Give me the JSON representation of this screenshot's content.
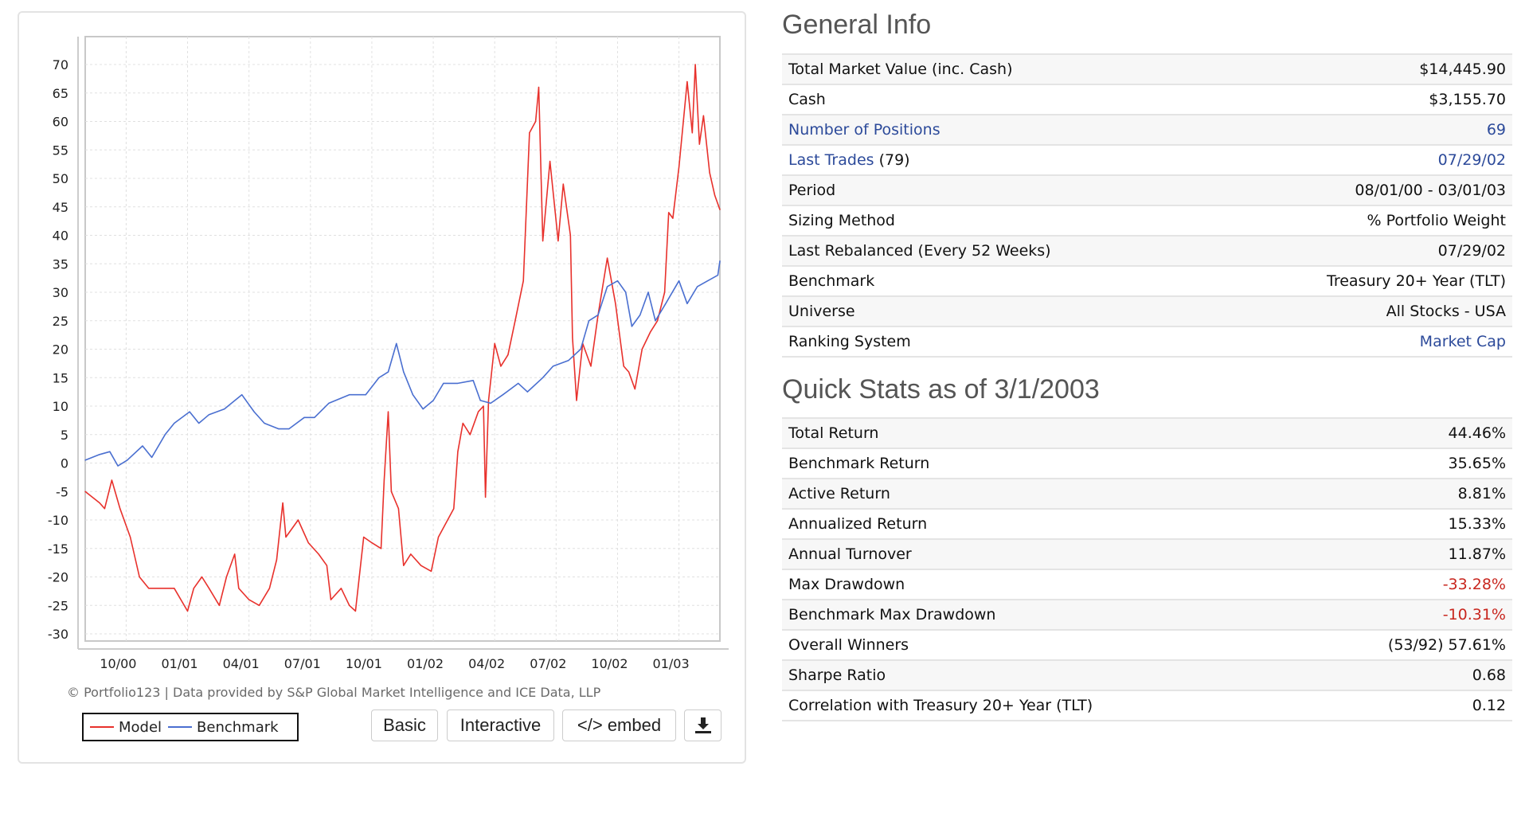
{
  "chart_data": {
    "type": "line",
    "title": "",
    "xlabel": "",
    "ylabel": "",
    "x_unit": "months since 08/01/00",
    "xlim": [
      0,
      31
    ],
    "ylim": [
      -32,
      75
    ],
    "grid": true,
    "yticks": [
      70,
      65,
      60,
      55,
      50,
      45,
      40,
      35,
      30,
      25,
      20,
      15,
      10,
      5,
      0,
      -5,
      -10,
      -15,
      -20,
      -25,
      -30
    ],
    "xticks": [
      {
        "label": "10/00",
        "x": 2
      },
      {
        "label": "01/01",
        "x": 5
      },
      {
        "label": "04/01",
        "x": 8
      },
      {
        "label": "07/01",
        "x": 11
      },
      {
        "label": "10/01",
        "x": 14
      },
      {
        "label": "01/02",
        "x": 17
      },
      {
        "label": "04/02",
        "x": 20
      },
      {
        "label": "07/02",
        "x": 23
      },
      {
        "label": "10/02",
        "x": 26
      },
      {
        "label": "01/03",
        "x": 29
      }
    ],
    "series": [
      {
        "name": "Model",
        "color": "#e8312c",
        "points": [
          [
            0,
            -5
          ],
          [
            0.7,
            -7
          ],
          [
            0.95,
            -8
          ],
          [
            1.3,
            -3
          ],
          [
            1.7,
            -8
          ],
          [
            2.2,
            -13
          ],
          [
            2.65,
            -20
          ],
          [
            3.1,
            -22
          ],
          [
            3.9,
            -22
          ],
          [
            4.35,
            -22
          ],
          [
            5.0,
            -26
          ],
          [
            5.3,
            -22
          ],
          [
            5.7,
            -20
          ],
          [
            6.05,
            -22
          ],
          [
            6.55,
            -25
          ],
          [
            6.9,
            -20
          ],
          [
            7.3,
            -16
          ],
          [
            7.5,
            -22
          ],
          [
            8.0,
            -24
          ],
          [
            8.5,
            -25
          ],
          [
            9.0,
            -22
          ],
          [
            9.35,
            -17
          ],
          [
            9.65,
            -7
          ],
          [
            9.8,
            -13
          ],
          [
            10.4,
            -10
          ],
          [
            10.9,
            -14
          ],
          [
            11.4,
            -16
          ],
          [
            11.8,
            -18
          ],
          [
            12.0,
            -24
          ],
          [
            12.5,
            -22
          ],
          [
            12.9,
            -25
          ],
          [
            13.2,
            -26
          ],
          [
            13.6,
            -13
          ],
          [
            14.0,
            -14
          ],
          [
            14.45,
            -15
          ],
          [
            14.6,
            -3
          ],
          [
            14.8,
            9
          ],
          [
            14.95,
            -5
          ],
          [
            15.3,
            -8
          ],
          [
            15.55,
            -18
          ],
          [
            15.9,
            -16
          ],
          [
            16.4,
            -18
          ],
          [
            16.9,
            -19
          ],
          [
            17.25,
            -13
          ],
          [
            17.7,
            -10
          ],
          [
            18.0,
            -8
          ],
          [
            18.2,
            2
          ],
          [
            18.45,
            7
          ],
          [
            18.8,
            5
          ],
          [
            19.2,
            9
          ],
          [
            19.45,
            10
          ],
          [
            19.55,
            -6
          ],
          [
            19.7,
            11
          ],
          [
            20.0,
            21
          ],
          [
            20.3,
            17
          ],
          [
            20.65,
            19
          ],
          [
            21.0,
            25
          ],
          [
            21.4,
            32
          ],
          [
            21.7,
            58
          ],
          [
            22.0,
            60
          ],
          [
            22.15,
            66
          ],
          [
            22.35,
            39
          ],
          [
            22.7,
            53
          ],
          [
            23.1,
            39
          ],
          [
            23.35,
            49
          ],
          [
            23.7,
            40
          ],
          [
            23.8,
            22
          ],
          [
            24.0,
            11
          ],
          [
            24.3,
            21
          ],
          [
            24.7,
            17
          ],
          [
            25.05,
            26
          ],
          [
            25.5,
            36
          ],
          [
            25.9,
            28
          ],
          [
            26.3,
            17
          ],
          [
            26.55,
            16
          ],
          [
            26.85,
            13
          ],
          [
            27.2,
            20
          ],
          [
            27.6,
            23
          ],
          [
            27.95,
            25
          ],
          [
            28.3,
            30
          ],
          [
            28.5,
            44
          ],
          [
            28.7,
            43
          ],
          [
            29.0,
            52
          ],
          [
            29.4,
            67
          ],
          [
            29.65,
            58
          ],
          [
            29.8,
            70
          ],
          [
            30.0,
            56
          ],
          [
            30.2,
            61
          ],
          [
            30.5,
            51
          ],
          [
            30.75,
            47
          ],
          [
            31.0,
            44.5
          ]
        ]
      },
      {
        "name": "Benchmark",
        "color": "#4a6fd0",
        "points": [
          [
            0,
            0.5
          ],
          [
            0.7,
            1.5
          ],
          [
            1.2,
            2
          ],
          [
            1.6,
            -0.5
          ],
          [
            2.05,
            0.5
          ],
          [
            2.8,
            3
          ],
          [
            3.25,
            1
          ],
          [
            3.9,
            5
          ],
          [
            4.35,
            7
          ],
          [
            5.1,
            9
          ],
          [
            5.55,
            7
          ],
          [
            6.05,
            8.5
          ],
          [
            6.8,
            9.5
          ],
          [
            7.65,
            12
          ],
          [
            8.25,
            9
          ],
          [
            8.75,
            7
          ],
          [
            9.45,
            6
          ],
          [
            9.95,
            6
          ],
          [
            10.7,
            8
          ],
          [
            11.2,
            8
          ],
          [
            11.9,
            10.5
          ],
          [
            12.9,
            12
          ],
          [
            13.7,
            12
          ],
          [
            14.35,
            15
          ],
          [
            14.8,
            16
          ],
          [
            15.2,
            21
          ],
          [
            15.55,
            16
          ],
          [
            16.0,
            12
          ],
          [
            16.5,
            9.5
          ],
          [
            17.0,
            11
          ],
          [
            17.5,
            14
          ],
          [
            18.2,
            14
          ],
          [
            18.95,
            14.5
          ],
          [
            19.3,
            11
          ],
          [
            19.8,
            10.5
          ],
          [
            20.4,
            12
          ],
          [
            21.15,
            14
          ],
          [
            21.6,
            12.5
          ],
          [
            22.35,
            15
          ],
          [
            22.85,
            17
          ],
          [
            23.6,
            18
          ],
          [
            24.2,
            20
          ],
          [
            24.6,
            25
          ],
          [
            25.05,
            26
          ],
          [
            25.5,
            31
          ],
          [
            26.0,
            32
          ],
          [
            26.4,
            30
          ],
          [
            26.7,
            24
          ],
          [
            27.1,
            26
          ],
          [
            27.5,
            30
          ],
          [
            27.85,
            25
          ],
          [
            28.35,
            28
          ],
          [
            29.0,
            32
          ],
          [
            29.4,
            28
          ],
          [
            29.9,
            31
          ],
          [
            30.4,
            32
          ],
          [
            30.9,
            33
          ],
          [
            31.0,
            35.5
          ]
        ]
      }
    ],
    "legend": [
      "Model",
      "Benchmark"
    ],
    "legend_placement": "bottom-left",
    "credit": "© Portfolio123 | Data provided by S&P Global Market Intelligence and ICE Data, LLP"
  },
  "chart_buttons": {
    "basic": "Basic",
    "interactive": "Interactive",
    "embed": "</> embed",
    "download_icon": "download-icon"
  },
  "general_info": {
    "heading": "General Info",
    "rows": [
      {
        "label": "Total Market Value (inc. Cash)",
        "value": "$14,445.90"
      },
      {
        "label": "Cash",
        "value": "$3,155.70"
      },
      {
        "label": "Number of Positions",
        "value": "69"
      },
      {
        "label": "Last Trades",
        "suffix": " (79)",
        "value": "07/29/02"
      },
      {
        "label": "Period",
        "value": "08/01/00 - 03/01/03"
      },
      {
        "label": "Sizing Method",
        "value": "% Portfolio Weight"
      },
      {
        "label": "Last Rebalanced (Every 52 Weeks)",
        "value": "07/29/02"
      },
      {
        "label": "Benchmark",
        "value": "Treasury 20+ Year (TLT)"
      },
      {
        "label": "Universe",
        "value": "All Stocks - USA"
      },
      {
        "label": "Ranking System",
        "value": "Market Cap"
      }
    ]
  },
  "quick_stats": {
    "heading": "Quick Stats as of 3/1/2003",
    "rows": [
      {
        "label": "Total Return",
        "value": "44.46%"
      },
      {
        "label": "Benchmark Return",
        "value": "35.65%"
      },
      {
        "label": "Active Return",
        "value": "8.81%"
      },
      {
        "label": "Annualized Return",
        "value": "15.33%"
      },
      {
        "label": "Annual Turnover",
        "value": "11.87%"
      },
      {
        "label": "Max Drawdown",
        "value": "-33.28%"
      },
      {
        "label": "Benchmark Max Drawdown",
        "value": "-10.31%"
      },
      {
        "label": "Overall Winners",
        "value": "(53/92) 57.61%"
      },
      {
        "label": "Sharpe Ratio",
        "value": "0.68"
      },
      {
        "label": "Correlation with Treasury 20+ Year (TLT)",
        "value": "0.12"
      }
    ]
  },
  "colors": {
    "link": "#2c4a9a",
    "negative": "#c8261e",
    "model": "#e8312c",
    "benchmark": "#4a6fd0"
  }
}
